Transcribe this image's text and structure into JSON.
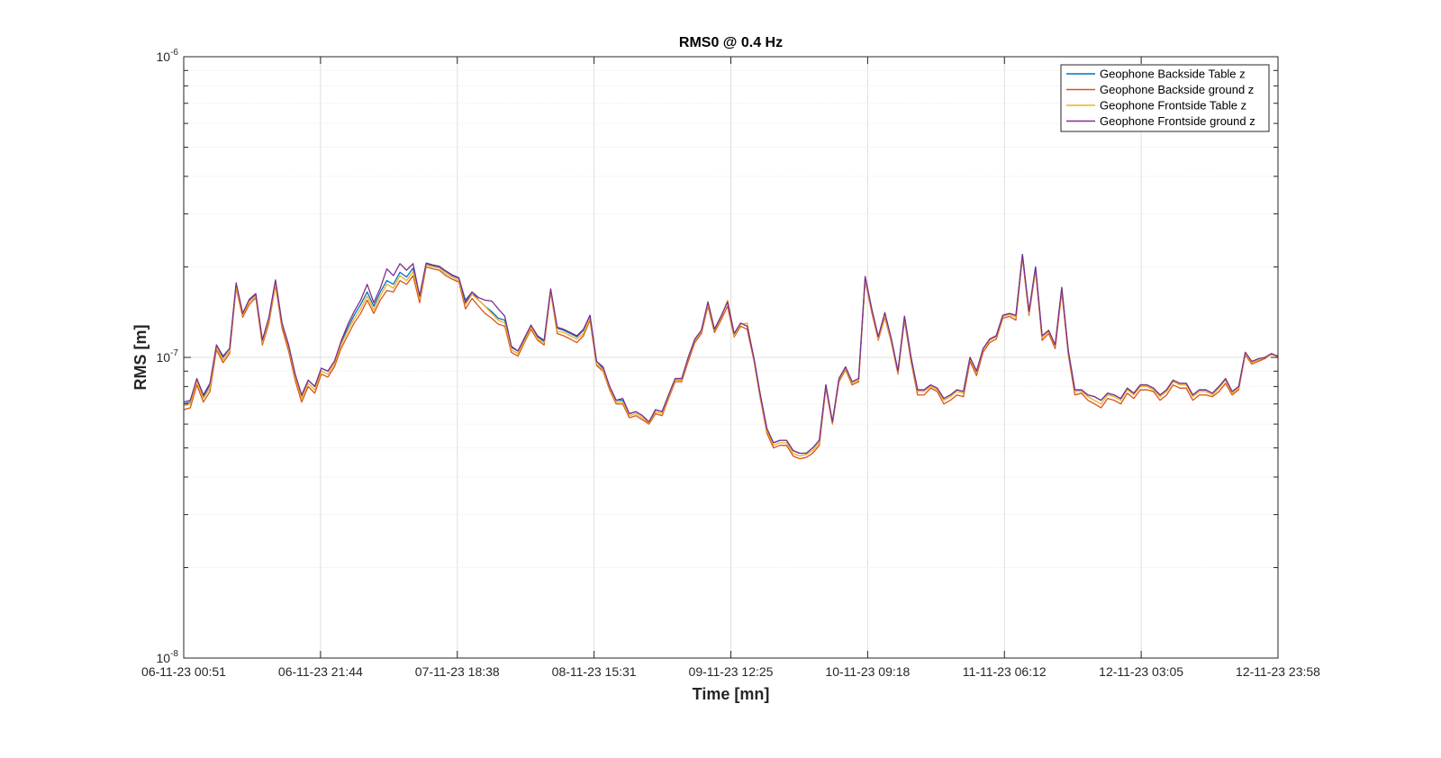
{
  "chart_data": {
    "type": "line",
    "title": "RMS0 @ 0.4 Hz",
    "xlabel": "Time [mn]",
    "ylabel": "RMS [m]",
    "yscale": "log",
    "ylim": [
      1e-08,
      1e-06
    ],
    "y_ticks": [
      {
        "base": "10",
        "exp": "-8",
        "value": 1e-08
      },
      {
        "base": "10",
        "exp": "-7",
        "value": 1e-07
      },
      {
        "base": "10",
        "exp": "-6",
        "value": 1e-06
      }
    ],
    "x_tick_labels": [
      "06-11-23 00:51",
      "06-11-23 21:44",
      "07-11-23 18:38",
      "08-11-23 15:31",
      "09-11-23 12:25",
      "10-11-23 09:18",
      "11-11-23 06:12",
      "12-11-23 03:05",
      "12-11-23 23:58"
    ],
    "grid": true,
    "legend_position": "top-right",
    "colors": {
      "axes": "#262626",
      "grid": "#dfdfdf"
    },
    "series": [
      {
        "name": "Geophone Backside Table z",
        "color": "#0072bd",
        "values": [
          7e-08,
          7.1e-08,
          8.5e-08,
          7.4e-08,
          8.1e-08,
          1.1e-07,
          1e-07,
          1.07e-07,
          1.75e-07,
          1.4e-07,
          1.55e-07,
          1.62e-07,
          1.14e-07,
          1.35e-07,
          1.8e-07,
          1.3e-07,
          1.1e-07,
          8.8e-08,
          7.4e-08,
          8.4e-08,
          8e-08,
          9.2e-08,
          9e-08,
          9.7e-08,
          1.12e-07,
          1.25e-07,
          1.38e-07,
          1.5e-07,
          1.65e-07,
          1.48e-07,
          1.65e-07,
          1.8e-07,
          1.75e-07,
          1.92e-07,
          1.85e-07,
          1.98e-07,
          1.6e-07,
          2.05e-07,
          2.02e-07,
          2e-07,
          1.93e-07,
          1.87e-07,
          1.83e-07,
          1.55e-07,
          1.65e-07,
          1.55e-07,
          1.48e-07,
          1.42e-07,
          1.35e-07,
          1.33e-07,
          1.08e-07,
          1.05e-07,
          1.15e-07,
          1.28e-07,
          1.17e-07,
          1.13e-07,
          1.68e-07,
          1.25e-07,
          1.23e-07,
          1.2e-07,
          1.17e-07,
          1.23e-07,
          1.38e-07,
          9.7e-08,
          9.2e-08,
          8e-08,
          7.2e-08,
          7.2e-08,
          6.5e-08,
          6.6e-08,
          6.4e-08,
          6.1e-08,
          6.7e-08,
          6.6e-08,
          7.5e-08,
          8.5e-08,
          8.5e-08,
          1e-07,
          1.15e-07,
          1.23e-07,
          1.52e-07,
          1.24e-07,
          1.37e-07,
          1.53e-07,
          1.2e-07,
          1.3e-07,
          1.27e-07,
          1e-07,
          7.5e-08,
          5.8e-08,
          5.2e-08,
          5.3e-08,
          5.3e-08,
          4.9e-08,
          4.8e-08,
          4.8e-08,
          5e-08,
          5.3e-08,
          8.1e-08,
          6.1e-08,
          8.5e-08,
          9.3e-08,
          8.3e-08,
          8.5e-08,
          1.85e-07,
          1.45e-07,
          1.17e-07,
          1.4e-07,
          1.15e-07,
          9e-08,
          1.37e-07,
          1e-07,
          7.8e-08,
          7.8e-08,
          8.1e-08,
          7.9e-08,
          7.3e-08,
          7.5e-08,
          7.8e-08,
          7.7e-08,
          1e-07,
          9e-08,
          1.07e-07,
          1.15e-07,
          1.18e-07,
          1.38e-07,
          1.4e-07,
          1.38e-07,
          2.2e-07,
          1.42e-07,
          2e-07,
          1.18e-07,
          1.23e-07,
          1.1e-07,
          1.7e-07,
          1.05e-07,
          7.8e-08,
          7.8e-08,
          7.5e-08,
          7.4e-08,
          7.2e-08,
          7.6e-08,
          7.5e-08,
          7.3e-08,
          7.9e-08,
          7.6e-08,
          8.1e-08,
          8.1e-08,
          7.9e-08,
          7.5e-08,
          7.8e-08,
          8.4e-08,
          8.2e-08,
          8.2e-08,
          7.5e-08,
          7.8e-08,
          7.8e-08,
          7.6e-08,
          8e-08,
          8.5e-08,
          7.7e-08,
          8e-08,
          1.03e-07,
          9.7e-08,
          9.8e-08,
          1e-07,
          1.02e-07,
          1.01e-07
        ]
      },
      {
        "name": "Geophone Backside ground z",
        "color": "#d95319",
        "values": [
          6.7e-08,
          6.8e-08,
          8.1e-08,
          7.1e-08,
          7.7e-08,
          1.06e-07,
          9.6e-08,
          1.03e-07,
          1.7e-07,
          1.36e-07,
          1.5e-07,
          1.58e-07,
          1.1e-07,
          1.3e-07,
          1.74e-07,
          1.25e-07,
          1.05e-07,
          8.4e-08,
          7.1e-08,
          8e-08,
          7.6e-08,
          8.8e-08,
          8.6e-08,
          9.3e-08,
          1.07e-07,
          1.18e-07,
          1.3e-07,
          1.4e-07,
          1.55e-07,
          1.4e-07,
          1.55e-07,
          1.67e-07,
          1.65e-07,
          1.8e-07,
          1.75e-07,
          1.87e-07,
          1.52e-07,
          2e-07,
          1.97e-07,
          1.95e-07,
          1.87e-07,
          1.82e-07,
          1.78e-07,
          1.45e-07,
          1.57e-07,
          1.48e-07,
          1.4e-07,
          1.35e-07,
          1.29e-07,
          1.27e-07,
          1.04e-07,
          1.01e-07,
          1.12e-07,
          1.24e-07,
          1.14e-07,
          1.1e-07,
          1.65e-07,
          1.2e-07,
          1.18e-07,
          1.15e-07,
          1.12e-07,
          1.18e-07,
          1.33e-07,
          9.4e-08,
          9e-08,
          7.8e-08,
          7e-08,
          7e-08,
          6.3e-08,
          6.4e-08,
          6.2e-08,
          6e-08,
          6.5e-08,
          6.4e-08,
          7.3e-08,
          8.3e-08,
          8.3e-08,
          9.7e-08,
          1.12e-07,
          1.2e-07,
          1.48e-07,
          1.21e-07,
          1.33e-07,
          1.48e-07,
          1.17e-07,
          1.27e-07,
          1.24e-07,
          9.8e-08,
          7.3e-08,
          5.6e-08,
          5e-08,
          5.1e-08,
          5.1e-08,
          4.7e-08,
          4.6e-08,
          4.65e-08,
          4.8e-08,
          5.1e-08,
          7.9e-08,
          6e-08,
          8.3e-08,
          9.1e-08,
          8.1e-08,
          8.3e-08,
          1.8e-07,
          1.41e-07,
          1.14e-07,
          1.36e-07,
          1.12e-07,
          8.8e-08,
          1.33e-07,
          9.7e-08,
          7.5e-08,
          7.5e-08,
          7.9e-08,
          7.7e-08,
          7e-08,
          7.2e-08,
          7.5e-08,
          7.4e-08,
          9.7e-08,
          8.7e-08,
          1.04e-07,
          1.12e-07,
          1.15e-07,
          1.35e-07,
          1.37e-07,
          1.33e-07,
          2.15e-07,
          1.38e-07,
          1.95e-07,
          1.14e-07,
          1.2e-07,
          1.07e-07,
          1.65e-07,
          1.02e-07,
          7.5e-08,
          7.6e-08,
          7.2e-08,
          7e-08,
          6.8e-08,
          7.3e-08,
          7.2e-08,
          7e-08,
          7.6e-08,
          7.3e-08,
          7.8e-08,
          7.8e-08,
          7.7e-08,
          7.2e-08,
          7.5e-08,
          8.1e-08,
          7.9e-08,
          7.9e-08,
          7.2e-08,
          7.5e-08,
          7.5e-08,
          7.4e-08,
          7.7e-08,
          8.2e-08,
          7.5e-08,
          7.8e-08,
          1.02e-07,
          9.5e-08,
          9.7e-08,
          9.9e-08,
          1.03e-07,
          1e-07
        ]
      },
      {
        "name": "Geophone Frontside Table z",
        "color": "#edb120",
        "values": [
          6.9e-08,
          7e-08,
          8.3e-08,
          7.3e-08,
          7.9e-08,
          1.08e-07,
          9.8e-08,
          1.05e-07,
          1.72e-07,
          1.38e-07,
          1.53e-07,
          1.6e-07,
          1.12e-07,
          1.33e-07,
          1.77e-07,
          1.28e-07,
          1.08e-07,
          8.6e-08,
          7.3e-08,
          8.2e-08,
          7.8e-08,
          9e-08,
          8.8e-08,
          9.5e-08,
          1.1e-07,
          1.22e-07,
          1.34e-07,
          1.45e-07,
          1.6e-07,
          1.44e-07,
          1.6e-07,
          1.75e-07,
          1.7e-07,
          1.87e-07,
          1.8e-07,
          1.93e-07,
          1.56e-07,
          2.03e-07,
          2e-07,
          1.98e-07,
          1.9e-07,
          1.85e-07,
          1.8e-07,
          1.5e-07,
          1.62e-07,
          1.55e-07,
          1.48e-07,
          1.4e-07,
          1.33e-07,
          1.3e-07,
          1.06e-07,
          1.03e-07,
          1.13e-07,
          1.26e-07,
          1.15e-07,
          1.12e-07,
          1.66e-07,
          1.22e-07,
          1.21e-07,
          1.18e-07,
          1.15e-07,
          1.2e-07,
          1.35e-07,
          9.5e-08,
          9.1e-08,
          7.9e-08,
          7.1e-08,
          7.1e-08,
          6.4e-08,
          6.5e-08,
          6.3e-08,
          6.05e-08,
          6.6e-08,
          6.5e-08,
          7.4e-08,
          8.4e-08,
          8.4e-08,
          9.9e-08,
          1.14e-07,
          1.22e-07,
          1.5e-07,
          1.23e-07,
          1.35e-07,
          1.55e-07,
          1.18e-07,
          1.29e-07,
          1.3e-07,
          9.9e-08,
          7.4e-08,
          5.7e-08,
          5.1e-08,
          5.2e-08,
          5.2e-08,
          4.8e-08,
          4.7e-08,
          4.75e-08,
          4.9e-08,
          5.2e-08,
          8e-08,
          6.05e-08,
          8.4e-08,
          9.2e-08,
          8.2e-08,
          8.4e-08,
          1.82e-07,
          1.43e-07,
          1.15e-07,
          1.38e-07,
          1.13e-07,
          8.9e-08,
          1.35e-07,
          9.9e-08,
          7.7e-08,
          7.7e-08,
          8e-08,
          7.8e-08,
          7.2e-08,
          7.4e-08,
          7.7e-08,
          7.6e-08,
          9.9e-08,
          8.9e-08,
          1.06e-07,
          1.14e-07,
          1.17e-07,
          1.37e-07,
          1.39e-07,
          1.36e-07,
          2.17e-07,
          1.4e-07,
          1.97e-07,
          1.16e-07,
          1.22e-07,
          1.09e-07,
          1.68e-07,
          1.04e-07,
          7.7e-08,
          7.7e-08,
          7.4e-08,
          7.2e-08,
          7e-08,
          7.5e-08,
          7.4e-08,
          7.2e-08,
          7.8e-08,
          7.5e-08,
          8e-08,
          8e-08,
          7.8e-08,
          7.4e-08,
          7.7e-08,
          8.3e-08,
          8.1e-08,
          8.1e-08,
          7.4e-08,
          7.7e-08,
          7.7e-08,
          7.5e-08,
          7.9e-08,
          8.4e-08,
          7.6e-08,
          7.9e-08,
          1.03e-07,
          9.6e-08,
          9.8e-08,
          1e-07,
          1.02e-07,
          1.01e-07
        ]
      },
      {
        "name": "Geophone Frontside ground z",
        "color": "#7e2f8e",
        "values": [
          7.1e-08,
          7.2e-08,
          8.5e-08,
          7.5e-08,
          8.2e-08,
          1.1e-07,
          1.01e-07,
          1.07e-07,
          1.77e-07,
          1.4e-07,
          1.56e-07,
          1.63e-07,
          1.14e-07,
          1.36e-07,
          1.81e-07,
          1.3e-07,
          1.1e-07,
          8.8e-08,
          7.5e-08,
          8.4e-08,
          8e-08,
          9.2e-08,
          9e-08,
          9.7e-08,
          1.13e-07,
          1.28e-07,
          1.42e-07,
          1.55e-07,
          1.75e-07,
          1.52e-07,
          1.7e-07,
          1.97e-07,
          1.87e-07,
          2.05e-07,
          1.95e-07,
          2.05e-07,
          1.6e-07,
          2.06e-07,
          2.03e-07,
          2.01e-07,
          1.94e-07,
          1.88e-07,
          1.84e-07,
          1.52e-07,
          1.65e-07,
          1.58e-07,
          1.55e-07,
          1.54e-07,
          1.45e-07,
          1.37e-07,
          1.09e-07,
          1.05e-07,
          1.16e-07,
          1.28e-07,
          1.18e-07,
          1.14e-07,
          1.69e-07,
          1.26e-07,
          1.24e-07,
          1.21e-07,
          1.18e-07,
          1.24e-07,
          1.38e-07,
          9.7e-08,
          9.3e-08,
          8e-08,
          7.2e-08,
          7.3e-08,
          6.5e-08,
          6.6e-08,
          6.4e-08,
          6.1e-08,
          6.7e-08,
          6.6e-08,
          7.5e-08,
          8.5e-08,
          8.5e-08,
          1e-07,
          1.15e-07,
          1.23e-07,
          1.53e-07,
          1.24e-07,
          1.37e-07,
          1.53e-07,
          1.2e-07,
          1.3e-07,
          1.27e-07,
          1e-07,
          7.5e-08,
          5.8e-08,
          5.2e-08,
          5.3e-08,
          5.3e-08,
          4.9e-08,
          4.8e-08,
          4.8e-08,
          5e-08,
          5.3e-08,
          8.1e-08,
          6.1e-08,
          8.5e-08,
          9.3e-08,
          8.3e-08,
          8.5e-08,
          1.86e-07,
          1.45e-07,
          1.17e-07,
          1.41e-07,
          1.15e-07,
          9e-08,
          1.37e-07,
          1e-07,
          7.8e-08,
          7.8e-08,
          8.1e-08,
          7.9e-08,
          7.3e-08,
          7.5e-08,
          7.8e-08,
          7.7e-08,
          1e-07,
          9e-08,
          1.07e-07,
          1.15e-07,
          1.18e-07,
          1.38e-07,
          1.4e-07,
          1.38e-07,
          2.2e-07,
          1.42e-07,
          2e-07,
          1.18e-07,
          1.23e-07,
          1.1e-07,
          1.71e-07,
          1.05e-07,
          7.8e-08,
          7.8e-08,
          7.5e-08,
          7.4e-08,
          7.2e-08,
          7.6e-08,
          7.5e-08,
          7.3e-08,
          7.9e-08,
          7.6e-08,
          8.1e-08,
          8.1e-08,
          7.9e-08,
          7.5e-08,
          7.8e-08,
          8.4e-08,
          8.2e-08,
          8.2e-08,
          7.5e-08,
          7.8e-08,
          7.8e-08,
          7.6e-08,
          8e-08,
          8.5e-08,
          7.7e-08,
          8e-08,
          1.04e-07,
          9.7e-08,
          9.9e-08,
          1e-07,
          1.03e-07,
          1.01e-07
        ]
      }
    ]
  }
}
